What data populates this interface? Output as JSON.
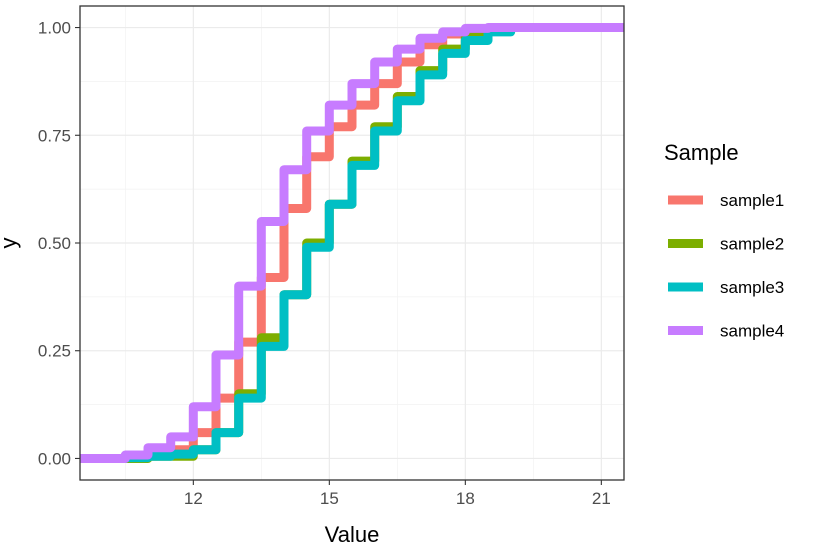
{
  "chart_data": {
    "type": "line",
    "subtype": "empirical-cdf",
    "title": "",
    "xlabel": "Value",
    "ylabel": "y",
    "xlim": [
      9.5,
      21.5
    ],
    "ylim": [
      -0.05,
      1.05
    ],
    "x_ticks": [
      12,
      15,
      18,
      21
    ],
    "x_tick_labels": [
      "12",
      "15",
      "18",
      "21"
    ],
    "x_minor_ticks": [
      10.5,
      13.5,
      16.5,
      19.5
    ],
    "y_ticks": [
      0,
      0.25,
      0.5,
      0.75,
      1.0
    ],
    "y_tick_labels": [
      "0.00",
      "0.25",
      "0.50",
      "0.75",
      "1.00"
    ],
    "y_minor_ticks": [
      0.125,
      0.375,
      0.625,
      0.875
    ],
    "grid": true,
    "legend": {
      "title": "Sample",
      "position": "right"
    },
    "series": [
      {
        "name": "sample1",
        "color": "#F8766D",
        "x": [
          9.5,
          10.5,
          11.0,
          11.5,
          12.0,
          12.5,
          13.0,
          13.5,
          14.0,
          14.5,
          15.0,
          15.5,
          16.0,
          16.5,
          17.0,
          17.5,
          18.0,
          18.5,
          19.0,
          21.5
        ],
        "y": [
          0.0,
          0.003,
          0.01,
          0.02,
          0.06,
          0.14,
          0.27,
          0.42,
          0.58,
          0.7,
          0.77,
          0.82,
          0.87,
          0.92,
          0.96,
          0.985,
          0.995,
          0.999,
          1.0,
          1.0
        ]
      },
      {
        "name": "sample2",
        "color": "#7CAE00",
        "x": [
          9.5,
          11.0,
          12.0,
          12.5,
          13.0,
          13.5,
          14.0,
          14.5,
          15.0,
          15.5,
          16.0,
          16.5,
          17.0,
          17.5,
          18.0,
          18.5,
          19.0,
          21.5
        ],
        "y": [
          0.0,
          0.005,
          0.02,
          0.06,
          0.15,
          0.28,
          0.38,
          0.5,
          0.59,
          0.69,
          0.77,
          0.84,
          0.9,
          0.95,
          0.98,
          0.995,
          1.0,
          1.0
        ]
      },
      {
        "name": "sample3",
        "color": "#00BFC4",
        "x": [
          9.5,
          10.5,
          11.0,
          11.5,
          12.0,
          12.5,
          13.0,
          13.5,
          14.0,
          14.5,
          15.0,
          15.5,
          16.0,
          16.5,
          17.0,
          17.5,
          18.0,
          18.5,
          19.0,
          21.5
        ],
        "y": [
          0.0,
          0.002,
          0.005,
          0.01,
          0.02,
          0.06,
          0.14,
          0.26,
          0.38,
          0.49,
          0.59,
          0.68,
          0.76,
          0.83,
          0.89,
          0.94,
          0.97,
          0.99,
          1.0,
          1.0
        ]
      },
      {
        "name": "sample4",
        "color": "#C77CFF",
        "x": [
          9.5,
          10.5,
          11.0,
          11.5,
          12.0,
          12.5,
          13.0,
          13.5,
          14.0,
          14.5,
          15.0,
          15.5,
          16.0,
          16.5,
          17.0,
          17.5,
          18.0,
          18.5,
          21.5
        ],
        "y": [
          0.0,
          0.008,
          0.025,
          0.05,
          0.12,
          0.24,
          0.4,
          0.55,
          0.67,
          0.76,
          0.82,
          0.87,
          0.92,
          0.95,
          0.975,
          0.99,
          0.998,
          1.0,
          1.0
        ]
      }
    ]
  }
}
